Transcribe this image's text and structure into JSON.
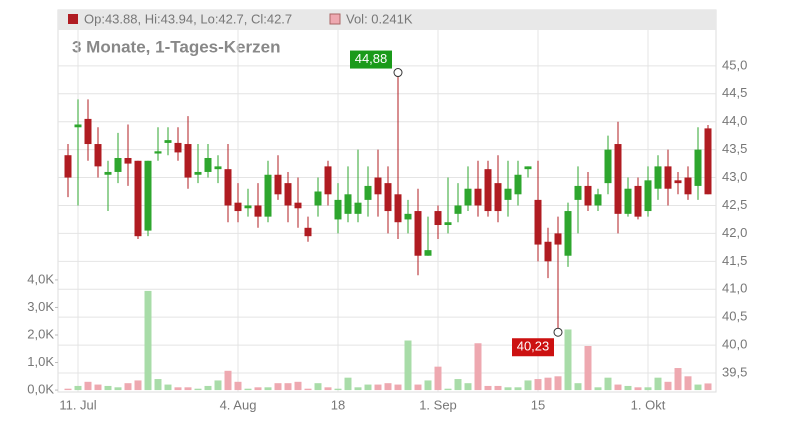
{
  "chart_data": {
    "type": "candlestick",
    "ohlc_label": "Op:43.88, Hi:43.94, Lo:42.7, Cl:42.7",
    "volume_label": "Vol: 0.241K",
    "subtitle": "3 Monate, 1-Tages-Kerzen",
    "categories": [
      null,
      "11. Jul",
      null,
      null,
      null,
      null,
      null,
      null,
      null,
      null,
      null,
      null,
      null,
      null,
      null,
      null,
      null,
      "4. Aug",
      null,
      null,
      null,
      null,
      null,
      null,
      null,
      null,
      null,
      "18",
      null,
      null,
      null,
      null,
      null,
      null,
      null,
      null,
      null,
      "1. Sep",
      null,
      null,
      null,
      null,
      null,
      null,
      null,
      null,
      null,
      "15",
      null,
      null,
      null,
      null,
      null,
      null,
      null,
      null,
      null,
      null,
      "1. Okt",
      null,
      null,
      null,
      null,
      null,
      null
    ],
    "open": [
      43.4,
      43.9,
      44.05,
      43.6,
      43.05,
      43.1,
      43.35,
      43.3,
      42.05,
      43.43,
      43.62,
      43.62,
      43.6,
      43.05,
      43.1,
      43.15,
      43.15,
      42.55,
      42.45,
      42.5,
      42.3,
      43.05,
      42.9,
      42.55,
      42.1,
      42.5,
      43.2,
      42.25,
      42.35,
      42.35,
      42.6,
      43.0,
      42.9,
      42.7,
      42.25,
      42.4,
      41.6,
      42.4,
      42.15,
      42.35,
      42.5,
      42.8,
      43.15,
      42.9,
      42.6,
      42.7,
      43.15,
      42.6,
      41.85,
      42.0,
      41.6,
      42.6,
      42.85,
      42.5,
      42.9,
      43.6,
      42.35,
      42.85,
      42.4,
      42.8,
      43.2,
      42.95,
      43.0,
      42.85,
      43.88
    ],
    "high": [
      43.6,
      44.4,
      44.4,
      43.9,
      43.3,
      43.8,
      43.95,
      43.3,
      43.3,
      43.9,
      43.9,
      43.9,
      44.1,
      43.6,
      43.6,
      43.4,
      43.6,
      42.9,
      42.8,
      42.9,
      43.3,
      43.4,
      43.1,
      43.0,
      42.3,
      43.0,
      43.3,
      42.9,
      43.2,
      43.5,
      43.2,
      43.5,
      43.2,
      44.88,
      42.6,
      42.8,
      42.3,
      42.5,
      43.0,
      42.9,
      43.2,
      43.3,
      43.3,
      43.4,
      43.3,
      43.3,
      43.2,
      43.3,
      42.1,
      42.3,
      42.55,
      43.2,
      43.1,
      42.8,
      43.75,
      44.0,
      43.0,
      43.0,
      43.2,
      43.4,
      43.5,
      43.1,
      43.2,
      43.9,
      43.94
    ],
    "low": [
      42.65,
      42.5,
      43.3,
      43.0,
      42.4,
      42.9,
      42.85,
      41.9,
      41.95,
      43.3,
      43.4,
      43.3,
      42.8,
      42.9,
      43.0,
      42.9,
      42.2,
      42.2,
      42.3,
      42.1,
      42.2,
      42.6,
      42.2,
      42.1,
      41.85,
      42.3,
      42.5,
      42.0,
      42.2,
      42.2,
      42.3,
      42.3,
      42.0,
      41.9,
      42.0,
      41.25,
      41.6,
      41.9,
      42.0,
      42.2,
      42.4,
      42.3,
      42.3,
      42.2,
      42.3,
      42.5,
      43.0,
      41.5,
      41.2,
      40.23,
      41.4,
      42.0,
      42.4,
      42.4,
      42.7,
      42.0,
      42.3,
      42.25,
      42.3,
      42.6,
      42.5,
      42.7,
      42.6,
      42.6,
      42.7
    ],
    "close": [
      43.0,
      43.95,
      43.6,
      43.2,
      43.1,
      43.35,
      43.25,
      41.95,
      43.3,
      43.47,
      43.67,
      43.45,
      43.0,
      43.1,
      43.35,
      43.2,
      42.5,
      42.4,
      42.5,
      42.3,
      43.05,
      42.7,
      42.5,
      42.45,
      41.95,
      42.75,
      42.7,
      42.6,
      42.7,
      42.55,
      42.85,
      42.7,
      42.4,
      42.2,
      42.35,
      41.6,
      41.7,
      42.15,
      42.2,
      42.5,
      42.8,
      42.5,
      42.4,
      42.4,
      42.8,
      43.05,
      43.2,
      41.8,
      41.5,
      41.8,
      42.4,
      42.85,
      42.5,
      42.7,
      43.5,
      42.35,
      42.8,
      42.3,
      42.95,
      43.2,
      42.8,
      42.9,
      42.7,
      43.5,
      42.7
    ],
    "volume": [
      0.05,
      0.15,
      0.3,
      0.2,
      0.15,
      0.1,
      0.25,
      0.35,
      3.6,
      0.4,
      0.2,
      0.1,
      0.1,
      0.05,
      0.15,
      0.35,
      0.7,
      0.3,
      0.05,
      0.1,
      0.1,
      0.25,
      0.25,
      0.3,
      0.05,
      0.25,
      0.1,
      0.05,
      0.45,
      0.1,
      0.2,
      0.2,
      0.25,
      0.2,
      1.8,
      0.2,
      0.35,
      0.85,
      0.05,
      0.4,
      0.25,
      1.7,
      0.15,
      0.15,
      0.1,
      0.1,
      0.35,
      0.4,
      0.45,
      0.5,
      2.2,
      0.25,
      1.6,
      0.1,
      0.45,
      0.2,
      0.15,
      0.1,
      0.1,
      0.45,
      0.3,
      0.8,
      0.5,
      0.2,
      0.241
    ],
    "up_color": "#2ea62e",
    "down_color": "#b01c22",
    "volume_up_color": "#a8dca8",
    "volume_down_color": "#eea8b0",
    "ylim": [
      39.16,
      46.0
    ],
    "yticks": [
      {
        "value": 39.5,
        "label": "39,5"
      },
      {
        "value": 40,
        "label": "40,0"
      },
      {
        "value": 40.5,
        "label": "40,5"
      },
      {
        "value": 41,
        "label": "41,0"
      },
      {
        "value": 41.5,
        "label": "41,5"
      },
      {
        "value": 42,
        "label": "42,0"
      },
      {
        "value": 42.5,
        "label": "42,5"
      },
      {
        "value": 43,
        "label": "43,0"
      },
      {
        "value": 43.5,
        "label": "43,5"
      },
      {
        "value": 44,
        "label": "44,0"
      },
      {
        "value": 44.5,
        "label": "44,5"
      },
      {
        "value": 45,
        "label": "45,0"
      }
    ],
    "y2lim": [
      -0.07,
      13.8
    ],
    "y2ticks": [
      {
        "value": 0,
        "label": "0,0K"
      },
      {
        "value": 1,
        "label": "1,0K"
      },
      {
        "value": 2,
        "label": "2,0K"
      },
      {
        "value": 3,
        "label": "3,0K"
      },
      {
        "value": 4,
        "label": "4,0K"
      }
    ],
    "annotations": [
      {
        "label": "44,88",
        "value": 44.88,
        "color": "#1a9a1a"
      },
      {
        "label": "40,23",
        "value": 40.23,
        "color": "#cc1111"
      }
    ],
    "grid": true
  }
}
